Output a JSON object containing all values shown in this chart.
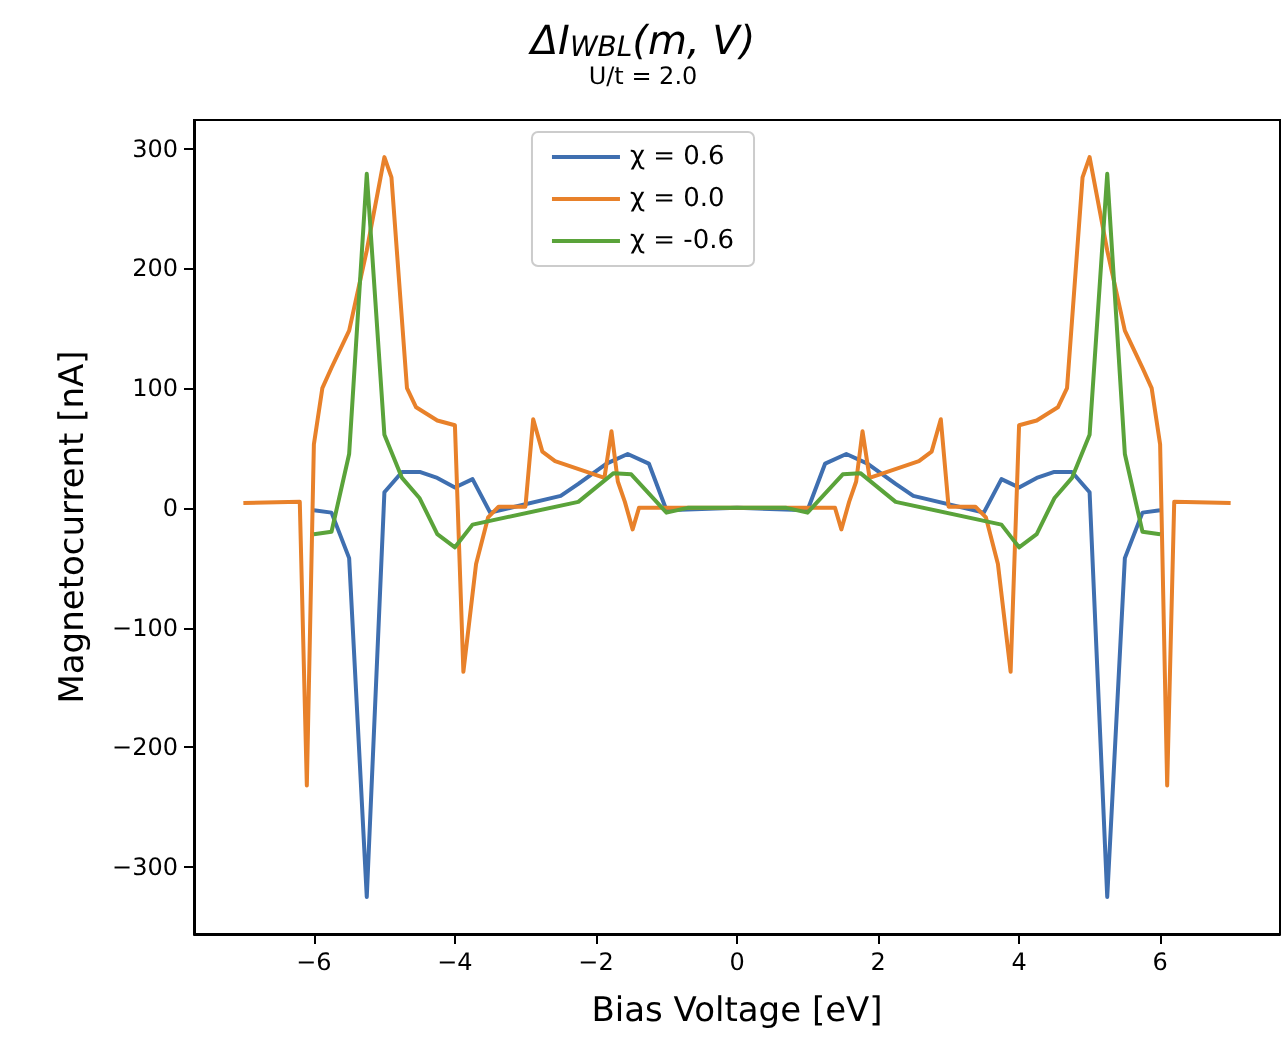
{
  "chart_data": {
    "type": "line",
    "title": "ΔI$_{WBL}$(m, V)",
    "subtitle": "U/t = 2.0",
    "xlabel": "Bias Voltage [eV]",
    "ylabel": "Magnetocurrent [nA]",
    "series": [
      {
        "name": "χ = 0.6",
        "color": "#3f6fb0",
        "x": [
          -6.0,
          -5.75,
          -5.5,
          -5.25,
          -5.0,
          -4.75,
          -4.5,
          -4.25,
          -4.0,
          -3.75,
          -3.5,
          -2.5,
          -2.25,
          -1.85,
          -1.55,
          -1.25,
          -1.0,
          0,
          1.0,
          1.25,
          1.55,
          1.85,
          2.25,
          2.5,
          3.5,
          3.75,
          4.0,
          4.25,
          4.5,
          4.75,
          5.0,
          5.25,
          5.5,
          5.75,
          6.0
        ],
        "values": [
          -2,
          -4,
          -42,
          -325,
          13,
          30,
          30,
          25,
          17,
          24,
          -4,
          10,
          20,
          37,
          45,
          37,
          -2,
          0,
          -2,
          37,
          45,
          37,
          20,
          10,
          -4,
          24,
          17,
          25,
          30,
          30,
          13,
          -325,
          -42,
          -4,
          -2
        ]
      },
      {
        "name": "χ = 0.0",
        "color": "#e8812a",
        "x": [
          -7.0,
          -6.2,
          -6.1,
          -6.0,
          -5.88,
          -5.75,
          -5.5,
          -5.25,
          -5.0,
          -4.9,
          -4.68,
          -4.55,
          -4.25,
          -4.0,
          -3.88,
          -3.7,
          -3.53,
          -3.38,
          -3.0,
          -2.89,
          -2.76,
          -2.58,
          -1.88,
          -1.78,
          -1.69,
          -1.59,
          -1.48,
          -1.39,
          -1.0,
          0,
          1.0,
          1.39,
          1.48,
          1.59,
          1.69,
          1.78,
          1.88,
          2.58,
          2.76,
          2.89,
          3.0,
          3.38,
          3.53,
          3.7,
          3.88,
          4.0,
          4.25,
          4.55,
          4.68,
          4.9,
          5.0,
          5.25,
          5.5,
          5.75,
          5.88,
          6.0,
          6.1,
          6.2,
          7.0
        ],
        "values": [
          4,
          5,
          -232,
          53,
          100,
          117,
          148,
          215,
          293,
          276,
          100,
          84,
          73,
          69,
          -137,
          -47,
          -8,
          1,
          1,
          74,
          47,
          39,
          25,
          64,
          22,
          5,
          -18,
          0,
          0,
          0,
          0,
          0,
          -18,
          5,
          22,
          64,
          25,
          39,
          47,
          74,
          1,
          1,
          -8,
          -47,
          -137,
          69,
          73,
          84,
          100,
          276,
          293,
          215,
          148,
          117,
          100,
          53,
          -232,
          5,
          4
        ]
      },
      {
        "name": "χ = -0.6",
        "color": "#5aa33a",
        "x": [
          -6.0,
          -5.75,
          -5.5,
          -5.25,
          -5.0,
          -4.75,
          -4.5,
          -4.25,
          -4.0,
          -3.75,
          -2.25,
          -1.75,
          -1.5,
          -1.0,
          -0.7,
          0,
          0.7,
          1.0,
          1.5,
          1.75,
          2.25,
          3.75,
          4.0,
          4.25,
          4.5,
          4.75,
          5.0,
          5.25,
          5.5,
          5.75,
          6.0
        ],
        "values": [
          -22,
          -20,
          45,
          279,
          61,
          25,
          8,
          -22,
          -33,
          -14,
          5,
          29,
          28,
          -4,
          0,
          0,
          0,
          -4,
          28,
          29,
          5,
          -14,
          -33,
          -22,
          8,
          25,
          61,
          279,
          45,
          -20,
          -22
        ]
      }
    ],
    "xlim": [
      -7.7,
      7.7
    ],
    "ylim": [
      -356,
      324
    ],
    "xticks": [
      -6,
      -4,
      -2,
      0,
      2,
      4,
      6
    ],
    "yticks": [
      -300,
      -200,
      -100,
      0,
      100,
      200,
      300
    ],
    "grid": false,
    "legend": "top",
    "marker": "none",
    "line_style": "solid"
  }
}
